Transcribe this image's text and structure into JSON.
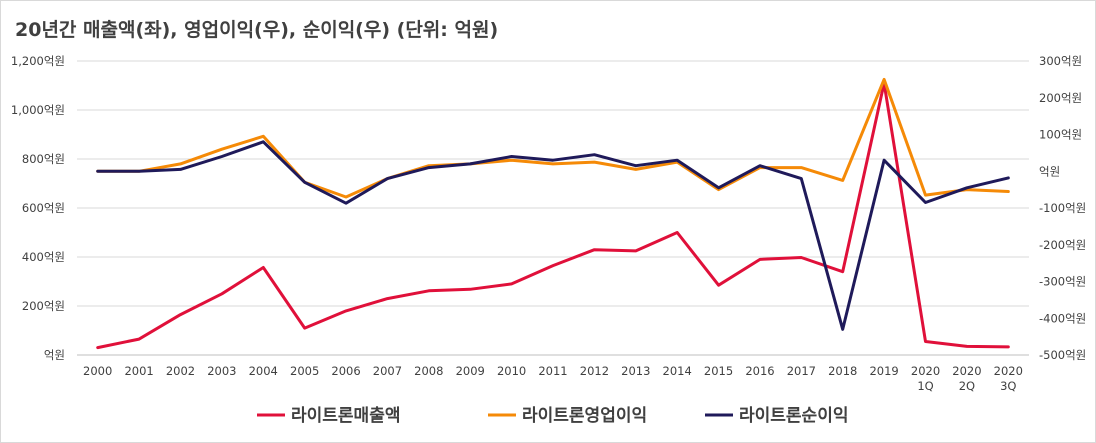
{
  "title": "20년간 매출액(좌), 영업이익(우), 순이익(우) (단위: 억원)",
  "colors": {
    "revenue": "#e0103a",
    "operating": "#f58a07",
    "net": "#1f1a5a",
    "grid": "#d9d9d9",
    "axis": "#bfbfbf",
    "text": "#404040"
  },
  "chart_data": {
    "type": "line",
    "title": "20년간 매출액(좌), 영업이익(우), 순이익(우) (단위: 억원)",
    "categories": [
      "2000",
      "2001",
      "2002",
      "2003",
      "2004",
      "2005",
      "2006",
      "2007",
      "2008",
      "2009",
      "2010",
      "2011",
      "2012",
      "2013",
      "2014",
      "2015",
      "2016",
      "2017",
      "2018",
      "2019",
      "2020\n1Q",
      "2020\n2Q",
      "2020\n3Q"
    ],
    "y_left": {
      "lim": [
        0,
        1200
      ],
      "ticks": [
        0,
        200,
        400,
        600,
        800,
        1000,
        1200
      ],
      "tick_labels": [
        "억원",
        "200억원",
        "400억원",
        "600억원",
        "800억원",
        "1,000억원",
        "1,200억원"
      ]
    },
    "y_right": {
      "lim": [
        -500,
        300
      ],
      "ticks": [
        -500,
        -400,
        -300,
        -200,
        -100,
        0,
        100,
        200,
        300
      ],
      "tick_labels": [
        "-500억원",
        "-400억원",
        "-300억원",
        "-200억원",
        "-100억원",
        "억원",
        "100억원",
        "200억원",
        "300억원"
      ]
    },
    "series": [
      {
        "name": "라이트론매출액",
        "axis": "left",
        "values": [
          30,
          65,
          165,
          250,
          357,
          110,
          180,
          230,
          262,
          268,
          290,
          365,
          430,
          425,
          500,
          285,
          390,
          398,
          340,
          1110,
          55,
          35,
          33
        ]
      },
      {
        "name": "라이트론영업이익",
        "axis": "right",
        "values": [
          0,
          0,
          20,
          60,
          95,
          -30,
          -70,
          -20,
          15,
          20,
          30,
          20,
          25,
          5,
          25,
          -50,
          10,
          10,
          -25,
          250,
          -65,
          -50,
          -55
        ]
      },
      {
        "name": "라이트론순이익",
        "axis": "right",
        "values": [
          0,
          0,
          5,
          40,
          80,
          -30,
          -87,
          -20,
          10,
          20,
          40,
          30,
          45,
          15,
          30,
          -45,
          15,
          -20,
          -430,
          30,
          -85,
          -45,
          -18
        ]
      }
    ],
    "grid": true,
    "legend_position": "bottom"
  }
}
